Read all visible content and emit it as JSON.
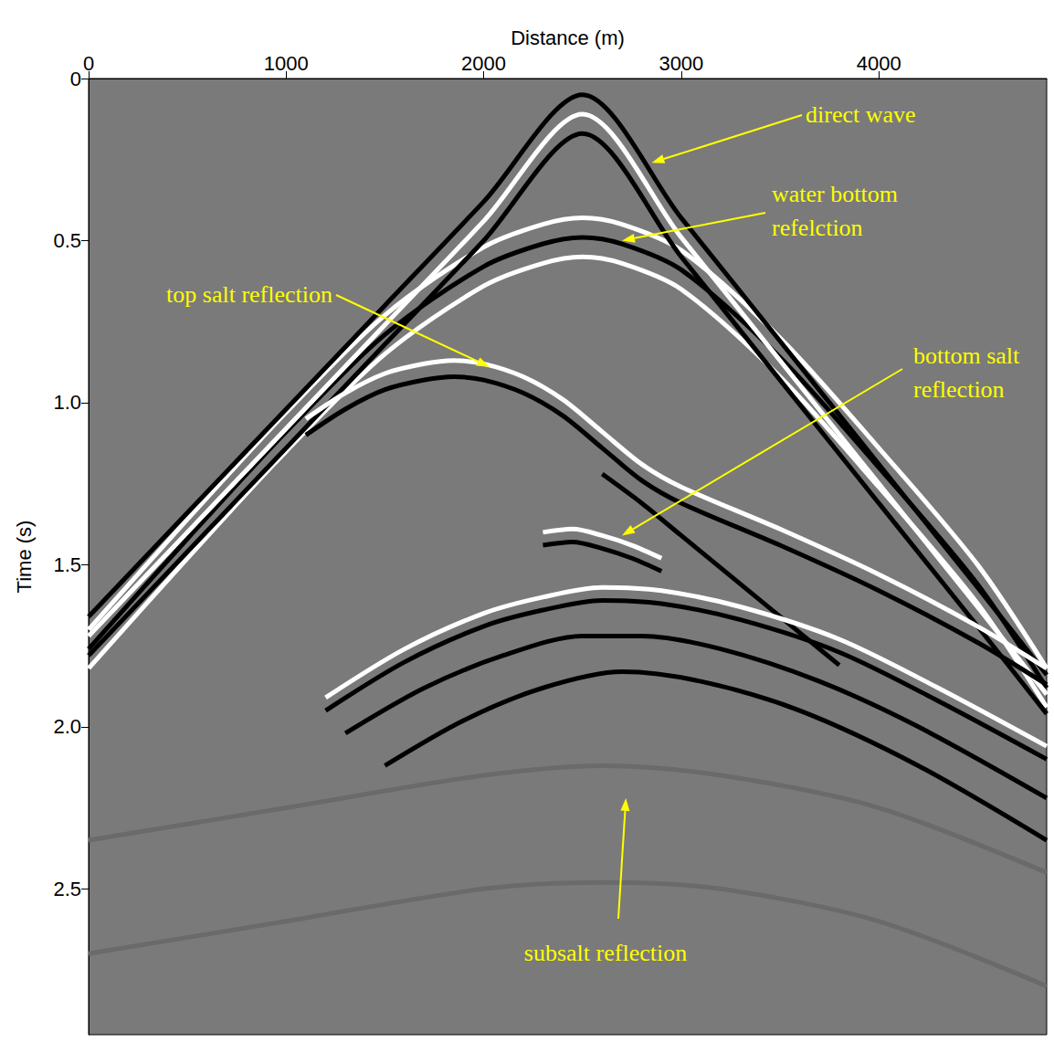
{
  "chart_data": {
    "type": "line",
    "x_label": "Distance (m)",
    "y_label": "Time (s)",
    "xlim": [
      0,
      4850
    ],
    "ylim": [
      2.95,
      0
    ],
    "xticks": [
      0,
      1000,
      2000,
      3000,
      4000
    ],
    "yticks": [
      0,
      0.5,
      {
        "value": 1,
        "label": "1.0"
      },
      1.5,
      {
        "value": 2,
        "label": "2.0"
      },
      2.5
    ],
    "grid": false,
    "series": [
      {
        "color": "#ffffff",
        "x": [
          0,
          500,
          1000,
          1500,
          2000,
          2300,
          2500,
          2700,
          3000,
          3500,
          4000,
          4500,
          4850
        ],
        "values": [
          1.7,
          1.36,
          1.03,
          0.73,
          0.52,
          0.45,
          0.43,
          0.45,
          0.53,
          0.8,
          1.14,
          1.5,
          1.82
        ]
      },
      {
        "color": "#000000",
        "x": [
          0,
          500,
          1000,
          1500,
          2000,
          2300,
          2500,
          2700,
          3000,
          3500,
          4000,
          4500,
          4850
        ],
        "values": [
          1.76,
          1.42,
          1.09,
          0.79,
          0.58,
          0.51,
          0.49,
          0.51,
          0.59,
          0.86,
          1.2,
          1.56,
          1.88
        ]
      },
      {
        "color": "#ffffff",
        "x": [
          0,
          500,
          1000,
          1500,
          2000,
          2300,
          2500,
          2700,
          3000,
          3500,
          4000,
          4500,
          4850
        ],
        "values": [
          1.82,
          1.48,
          1.15,
          0.85,
          0.64,
          0.57,
          0.55,
          0.57,
          0.65,
          0.92,
          1.26,
          1.62,
          1.94
        ]
      },
      {
        "color": "#000000",
        "x": [
          0,
          500,
          1000,
          1500,
          2000,
          2500,
          3000,
          3500,
          4000,
          4500,
          4850
        ],
        "values": [
          1.66,
          1.34,
          1.02,
          0.7,
          0.38,
          0.05,
          0.43,
          0.81,
          1.19,
          1.57,
          1.84
        ]
      },
      {
        "color": "#ffffff",
        "x": [
          0,
          500,
          1000,
          1500,
          2000,
          2500,
          3000,
          3500,
          4000,
          4500,
          4850
        ],
        "values": [
          1.72,
          1.4,
          1.08,
          0.76,
          0.44,
          0.11,
          0.49,
          0.87,
          1.25,
          1.63,
          1.9
        ]
      },
      {
        "color": "#000000",
        "x": [
          0,
          500,
          1000,
          1500,
          2000,
          2500,
          3000,
          3500,
          4000,
          4500,
          4850
        ],
        "values": [
          1.78,
          1.46,
          1.14,
          0.82,
          0.5,
          0.17,
          0.55,
          0.93,
          1.31,
          1.69,
          1.96
        ]
      },
      {
        "color": "#ffffff",
        "x": [
          1100,
          1300,
          1500,
          1700,
          1850,
          2000,
          2200,
          2400,
          2600,
          2800,
          3000,
          3500,
          4000,
          4500,
          4850
        ],
        "values": [
          1.05,
          0.97,
          0.91,
          0.88,
          0.87,
          0.88,
          0.92,
          0.99,
          1.09,
          1.19,
          1.26,
          1.39,
          1.53,
          1.69,
          1.82
        ]
      },
      {
        "color": "#000000",
        "x": [
          1100,
          1300,
          1500,
          1700,
          1850,
          2000,
          2200,
          2400,
          2600,
          2800,
          3000,
          3500,
          4000,
          4500,
          4850
        ],
        "values": [
          1.1,
          1.02,
          0.96,
          0.93,
          0.92,
          0.93,
          0.97,
          1.04,
          1.14,
          1.24,
          1.31,
          1.44,
          1.58,
          1.74,
          1.87
        ]
      },
      {
        "color": "#000000",
        "x": [
          2600,
          2800,
          3000,
          3200,
          3400,
          3600,
          3800
        ],
        "values": [
          1.22,
          1.31,
          1.41,
          1.51,
          1.61,
          1.71,
          1.81
        ]
      },
      {
        "color": "#ffffff",
        "x": [
          2300,
          2450,
          2600,
          2750,
          2900
        ],
        "values": [
          1.4,
          1.39,
          1.41,
          1.44,
          1.48
        ]
      },
      {
        "color": "#000000",
        "x": [
          2300,
          2450,
          2600,
          2750,
          2900
        ],
        "values": [
          1.44,
          1.43,
          1.45,
          1.48,
          1.52
        ]
      },
      {
        "color": "#ffffff",
        "x": [
          1200,
          1600,
          2000,
          2300,
          2600,
          2900,
          3300,
          3800,
          4300,
          4850
        ],
        "values": [
          1.91,
          1.76,
          1.65,
          1.6,
          1.57,
          1.58,
          1.63,
          1.73,
          1.88,
          2.06
        ]
      },
      {
        "color": "#000000",
        "x": [
          1200,
          1600,
          2000,
          2300,
          2600,
          2900,
          3300,
          3800,
          4300,
          4850
        ],
        "values": [
          1.95,
          1.8,
          1.69,
          1.64,
          1.61,
          1.62,
          1.67,
          1.77,
          1.92,
          2.1
        ]
      },
      {
        "color": "#000000",
        "x": [
          1300,
          1700,
          2100,
          2500,
          2800,
          3200,
          3700,
          4200,
          4850
        ],
        "values": [
          2.02,
          1.88,
          1.78,
          1.72,
          1.72,
          1.76,
          1.86,
          2.0,
          2.22
        ]
      },
      {
        "color": "#000000",
        "x": [
          1500,
          1900,
          2300,
          2700,
          3100,
          3600,
          4200,
          4850
        ],
        "values": [
          2.12,
          1.98,
          1.88,
          1.83,
          1.86,
          1.95,
          2.12,
          2.35
        ]
      },
      {
        "color": "#6a6a6a",
        "x": [
          0,
          1000,
          2000,
          2600,
          3200,
          4000,
          4850
        ],
        "values": [
          2.35,
          2.25,
          2.15,
          2.12,
          2.15,
          2.25,
          2.45
        ]
      },
      {
        "color": "#6a6a6a",
        "x": [
          0,
          1000,
          2000,
          2600,
          3200,
          4000,
          4850
        ],
        "values": [
          2.7,
          2.6,
          2.5,
          2.48,
          2.5,
          2.6,
          2.8
        ]
      }
    ],
    "annotations": [
      {
        "text": "direct wave",
        "x": 2850,
        "y": 0.26
      },
      {
        "text": "water bottom\nrefelction",
        "x": 2700,
        "y": 0.5
      },
      {
        "text": "top salt reflection",
        "x": 2030,
        "y": 0.89
      },
      {
        "text": "bottom salt\nreflection",
        "x": 2700,
        "y": 1.41
      },
      {
        "text": "subsalt reflection",
        "x": 2720,
        "y": 2.22
      }
    ]
  }
}
